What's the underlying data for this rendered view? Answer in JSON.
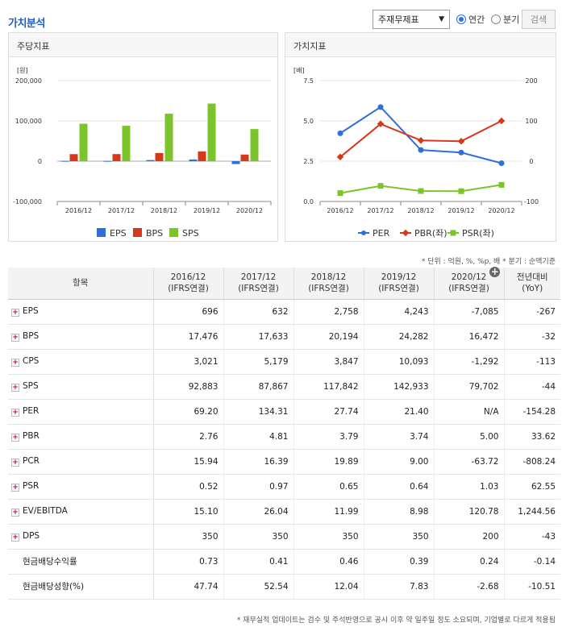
{
  "header": {
    "title": "가치분석",
    "select_value": "주재무제표",
    "radio_annual": "연간",
    "radio_quarter": "분기",
    "search": "검색"
  },
  "panels": {
    "left_title": "주당지표",
    "right_title": "가치지표"
  },
  "chart_data": [
    {
      "type": "bar",
      "title": "",
      "ylabel": "[원]",
      "ylim": [
        -100000,
        200000
      ],
      "yticks": [
        "200,000",
        "100,000",
        "0",
        "-100,000"
      ],
      "categories": [
        "2016/12",
        "2017/12",
        "2018/12",
        "2019/12",
        "2020/12"
      ],
      "series": [
        {
          "name": "EPS",
          "color": "#2f6fd8",
          "values": [
            696,
            632,
            2758,
            4243,
            -7085
          ]
        },
        {
          "name": "BPS",
          "color": "#d43a1a",
          "values": [
            17476,
            17633,
            20194,
            24282,
            16472
          ]
        },
        {
          "name": "SPS",
          "color": "#7cc42b",
          "values": [
            92883,
            87867,
            117842,
            142933,
            79702
          ]
        }
      ]
    },
    {
      "type": "line",
      "title": "",
      "ylabel": "[배]",
      "ylabel_right": "[배]",
      "ylim": [
        0,
        7.5
      ],
      "ylim_right": [
        -100,
        200
      ],
      "yticks": [
        "7.5",
        "5.0",
        "2.5",
        "0.0"
      ],
      "yticks_right": [
        "200",
        "100",
        "0",
        "-100"
      ],
      "categories": [
        "2016/12",
        "2017/12",
        "2018/12",
        "2019/12",
        "2020/12"
      ],
      "series": [
        {
          "name": "PER",
          "color": "#2f6fd8",
          "axis": "right",
          "values": [
            69.2,
            134.31,
            27.74,
            21.4,
            null
          ]
        },
        {
          "name": "PBR(좌)",
          "color": "#d43a1a",
          "axis": "left",
          "values": [
            2.76,
            4.81,
            3.79,
            3.74,
            5.0
          ]
        },
        {
          "name": "PSR(좌)",
          "color": "#7cc42b",
          "axis": "left",
          "values": [
            0.52,
            0.97,
            0.65,
            0.64,
            1.03
          ]
        }
      ]
    }
  ],
  "unit_note": "* 단위 : 억원, %, %p, 배   * 분기 : 순액기준",
  "table": {
    "headers": [
      "항목",
      "2016/12\n(IFRS연결)",
      "2017/12\n(IFRS연결)",
      "2018/12\n(IFRS연결)",
      "2019/12\n(IFRS연결)",
      "2020/12\n(IFRS연결)",
      "전년대비\n(YoY)"
    ],
    "rows": [
      {
        "label": "EPS",
        "plus": true,
        "values": [
          "696",
          "632",
          "2,758",
          "4,243",
          "-7,085",
          "-267"
        ]
      },
      {
        "label": "BPS",
        "plus": true,
        "values": [
          "17,476",
          "17,633",
          "20,194",
          "24,282",
          "16,472",
          "-32"
        ]
      },
      {
        "label": "CPS",
        "plus": true,
        "values": [
          "3,021",
          "5,179",
          "3,847",
          "10,093",
          "-1,292",
          "-113"
        ]
      },
      {
        "label": "SPS",
        "plus": true,
        "values": [
          "92,883",
          "87,867",
          "117,842",
          "142,933",
          "79,702",
          "-44"
        ]
      },
      {
        "label": "PER",
        "plus": true,
        "values": [
          "69.20",
          "134.31",
          "27.74",
          "21.40",
          "N/A",
          "-154.28"
        ]
      },
      {
        "label": "PBR",
        "plus": true,
        "values": [
          "2.76",
          "4.81",
          "3.79",
          "3.74",
          "5.00",
          "33.62"
        ]
      },
      {
        "label": "PCR",
        "plus": true,
        "values": [
          "15.94",
          "16.39",
          "19.89",
          "9.00",
          "-63.72",
          "-808.24"
        ]
      },
      {
        "label": "PSR",
        "plus": true,
        "values": [
          "0.52",
          "0.97",
          "0.65",
          "0.64",
          "1.03",
          "62.55"
        ]
      },
      {
        "label": "EV/EBITDA",
        "plus": true,
        "values": [
          "15.10",
          "26.04",
          "11.99",
          "8.98",
          "120.78",
          "1,244.56"
        ]
      },
      {
        "label": "DPS",
        "plus": true,
        "values": [
          "350",
          "350",
          "350",
          "350",
          "200",
          "-43"
        ]
      },
      {
        "label": "현금배당수익률",
        "plus": false,
        "values": [
          "0.73",
          "0.41",
          "0.46",
          "0.39",
          "0.24",
          "-0.14"
        ]
      },
      {
        "label": "현금배당성향(%)",
        "plus": false,
        "values": [
          "47.74",
          "52.54",
          "12.04",
          "7.83",
          "-2.68",
          "-10.51"
        ]
      }
    ]
  },
  "footnote": "* 재무실적 업데이트는 검수 및 주석반영으로 공시 이후 약 일주일 정도 소요되며, 기업별로 다르게 적용됨"
}
